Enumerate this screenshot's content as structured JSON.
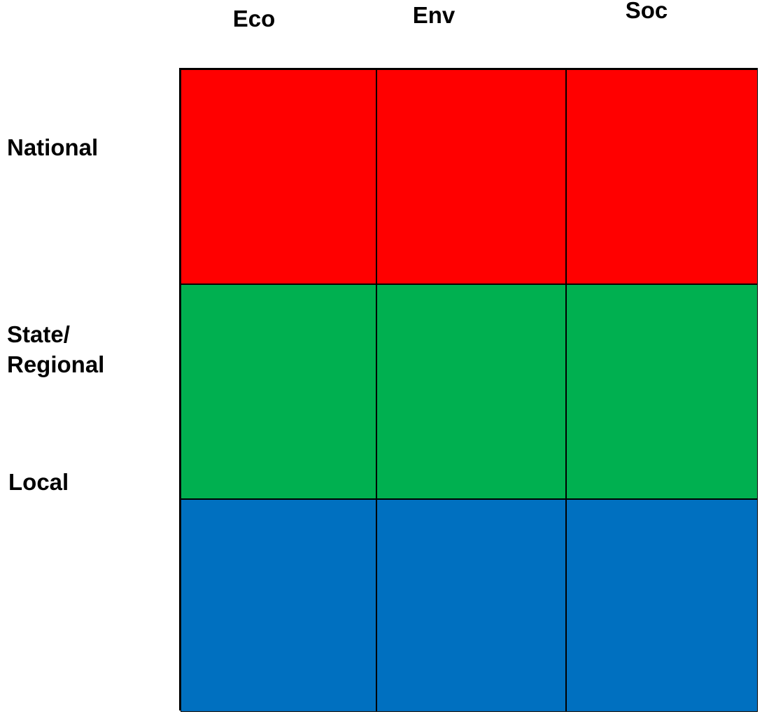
{
  "columns": [
    {
      "label": "Eco"
    },
    {
      "label": "Env"
    },
    {
      "label": "Soc"
    }
  ],
  "rows": [
    {
      "label": "National",
      "color": "#ff0000"
    },
    {
      "label": "State/",
      "label2": "Regional",
      "color": "#00b050"
    },
    {
      "label": "Local",
      "color": "#0070c0"
    }
  ]
}
